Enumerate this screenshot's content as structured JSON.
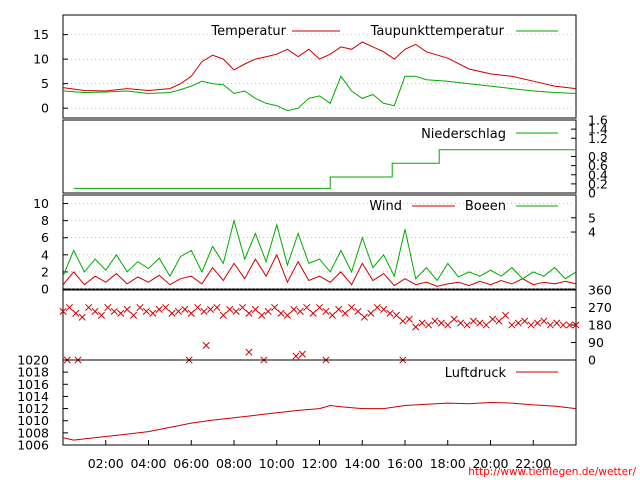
{
  "colors": {
    "temperature": "#cc0000",
    "dewpoint": "#00aa00",
    "precipitation": "#00aa00",
    "wind": "#cc0000",
    "gusts": "#00aa00",
    "direction": "#cc0000",
    "pressure": "#cc0000",
    "grid": "#999999",
    "credit": "#ff0000"
  },
  "credit": "http://www.tiefflegen.de/wetter/",
  "chart_data": [
    {
      "id": "temperature",
      "type": "line",
      "xlabel": "",
      "ylabel": "",
      "x_unit": "hours",
      "xlim": [
        0,
        24
      ],
      "ylim": [
        -2,
        19
      ],
      "y_ticks": [
        0,
        5,
        10,
        15
      ],
      "grid": "horizontal",
      "legend_position": "top",
      "series": [
        {
          "name": "Temperatur",
          "color": "#cc0000",
          "x": [
            0,
            1,
            2,
            3,
            4,
            5,
            5.5,
            6,
            6.5,
            7,
            7.5,
            8,
            8.5,
            9,
            9.5,
            10,
            10.5,
            11,
            11.5,
            12,
            12.5,
            13,
            13.5,
            14,
            14.5,
            15,
            15.5,
            16,
            16.5,
            17,
            18,
            19,
            20,
            21,
            22,
            23,
            24
          ],
          "y": [
            4.2,
            3.6,
            3.5,
            4.0,
            3.6,
            4.0,
            5.0,
            6.5,
            9.5,
            10.8,
            10.0,
            7.8,
            9.0,
            10.0,
            10.5,
            11.0,
            12.0,
            10.5,
            12.0,
            10.0,
            11.0,
            12.5,
            12.0,
            13.5,
            12.5,
            11.5,
            10.0,
            12.0,
            13.0,
            11.5,
            10.2,
            8.0,
            7.0,
            6.5,
            5.5,
            4.5,
            4.0
          ]
        },
        {
          "name": "Taupunkttemperatur",
          "color": "#00aa00",
          "x": [
            0,
            1,
            2,
            3,
            4,
            5,
            5.5,
            6,
            6.5,
            7,
            7.5,
            8,
            8.5,
            9,
            9.5,
            10,
            10.5,
            11,
            11.5,
            12,
            12.5,
            13,
            13.5,
            14,
            14.5,
            15,
            15.5,
            16,
            16.5,
            17,
            18,
            19,
            20,
            21,
            22,
            23,
            24
          ],
          "y": [
            3.5,
            3.2,
            3.3,
            3.5,
            3.0,
            3.2,
            3.8,
            4.5,
            5.5,
            5.0,
            4.8,
            3.0,
            3.5,
            2.0,
            1.0,
            0.5,
            -0.5,
            0.0,
            2.0,
            2.5,
            1.0,
            6.5,
            3.5,
            2.0,
            2.8,
            1.0,
            0.5,
            6.5,
            6.5,
            5.8,
            5.5,
            5.0,
            4.5,
            4.0,
            3.5,
            3.2,
            3.0
          ]
        }
      ]
    },
    {
      "id": "precipitation",
      "type": "line",
      "xlim": [
        0,
        24
      ],
      "ylim": [
        0,
        1.6
      ],
      "y_ticks_right": [
        0,
        0.2,
        0.4,
        0.6,
        0.8,
        1.2,
        1.4,
        1.6
      ],
      "legend_position": "top-right",
      "series": [
        {
          "name": "Niederschlag",
          "color": "#00aa00",
          "x": [
            0.5,
            12.5,
            12.5,
            15.4,
            15.4,
            17.6,
            17.6,
            24
          ],
          "y": [
            0.1,
            0.1,
            0.35,
            0.35,
            0.65,
            0.65,
            0.95,
            0.95
          ]
        }
      ]
    },
    {
      "id": "wind",
      "type": "line",
      "xlim": [
        0,
        24
      ],
      "ylim": [
        0,
        11
      ],
      "y_ticks": [
        0,
        2,
        4,
        6,
        8,
        10
      ],
      "y_ticks_right": [
        4,
        5
      ],
      "grid": "horizontal",
      "legend_position": "top-right",
      "series": [
        {
          "name": "Wind",
          "color": "#cc0000",
          "x": [
            0,
            0.5,
            1,
            1.5,
            2,
            2.5,
            3,
            3.5,
            4,
            4.5,
            5,
            5.5,
            6,
            6.5,
            7,
            7.5,
            8,
            8.5,
            9,
            9.5,
            10,
            10.5,
            11,
            11.5,
            12,
            12.5,
            13,
            13.5,
            14,
            14.5,
            15,
            15.5,
            16,
            16.5,
            17,
            17.5,
            18,
            18.5,
            19,
            19.5,
            20,
            20.5,
            21,
            21.5,
            22,
            22.5,
            23,
            23.5,
            24
          ],
          "y": [
            0.5,
            2.0,
            0.5,
            1.5,
            0.8,
            1.8,
            0.6,
            1.4,
            0.8,
            1.6,
            0.5,
            1.2,
            1.5,
            0.6,
            2.5,
            1.0,
            3.0,
            1.2,
            3.5,
            1.5,
            4.0,
            0.8,
            3.2,
            1.0,
            1.5,
            0.8,
            2.0,
            0.5,
            3.0,
            1.0,
            1.8,
            0.4,
            1.2,
            0.5,
            0.8,
            0.3,
            0.6,
            0.8,
            0.4,
            0.9,
            0.5,
            1.0,
            0.6,
            1.2,
            0.5,
            0.8,
            0.6,
            0.9,
            0.6
          ]
        },
        {
          "name": "Boeen",
          "color": "#00aa00",
          "x": [
            0,
            0.5,
            1,
            1.5,
            2,
            2.5,
            3,
            3.5,
            4,
            4.5,
            5,
            5.5,
            6,
            6.5,
            7,
            7.5,
            8,
            8.5,
            9,
            9.5,
            10,
            10.5,
            11,
            11.5,
            12,
            12.5,
            13,
            13.5,
            14,
            14.5,
            15,
            15.5,
            16,
            16.5,
            17,
            17.5,
            18,
            18.5,
            19,
            19.5,
            20,
            20.5,
            21,
            21.5,
            22,
            22.5,
            23,
            23.5,
            24
          ],
          "y": [
            1.5,
            4.5,
            2.0,
            3.5,
            2.2,
            4.0,
            2.0,
            3.2,
            2.4,
            3.6,
            1.5,
            3.8,
            4.5,
            2.0,
            5.0,
            3.0,
            8.0,
            3.5,
            6.5,
            3.2,
            7.5,
            2.8,
            6.5,
            3.0,
            3.5,
            2.0,
            4.5,
            2.0,
            6.0,
            2.5,
            4.0,
            1.5,
            7.0,
            1.2,
            2.5,
            1.0,
            3.0,
            1.4,
            2.0,
            1.5,
            2.2,
            1.5,
            2.5,
            1.2,
            2.0,
            1.5,
            2.5,
            1.2,
            2.0
          ]
        }
      ]
    },
    {
      "id": "wind-direction",
      "type": "scatter",
      "marker": "x",
      "xlim": [
        0,
        24
      ],
      "ylim": [
        0,
        360
      ],
      "y_ticks_right": [
        0,
        90,
        180,
        270,
        360
      ],
      "series": [
        {
          "name": "",
          "color": "#cc0000",
          "x": [
            0,
            0.3,
            0.6,
            0.9,
            1.2,
            1.5,
            1.8,
            2.1,
            2.4,
            2.7,
            3.0,
            3.3,
            3.6,
            3.9,
            4.2,
            4.5,
            4.8,
            5.1,
            5.4,
            5.7,
            6.0,
            6.3,
            6.6,
            6.9,
            7.2,
            7.5,
            7.8,
            8.1,
            8.4,
            8.7,
            9.0,
            9.3,
            9.6,
            9.9,
            10.2,
            10.5,
            10.8,
            11.1,
            11.4,
            11.7,
            12.0,
            12.3,
            12.6,
            12.9,
            13.2,
            13.5,
            13.8,
            14.1,
            14.4,
            14.7,
            15.0,
            15.3,
            15.6,
            15.9,
            16.2,
            16.5,
            16.8,
            17.1,
            17.4,
            17.7,
            18.0,
            18.3,
            18.6,
            18.9,
            19.2,
            19.5,
            19.8,
            20.1,
            20.4,
            20.7,
            21.0,
            21.3,
            21.6,
            21.9,
            22.2,
            22.5,
            22.8,
            23.1,
            23.4,
            23.7,
            24.0,
            6.7,
            8.7,
            10.9,
            11.2,
            0.2,
            0.7,
            5.9,
            9.4,
            12.3,
            15.9
          ],
          "y": [
            250,
            270,
            240,
            220,
            270,
            250,
            230,
            270,
            250,
            240,
            260,
            230,
            270,
            250,
            240,
            260,
            270,
            240,
            250,
            260,
            240,
            270,
            250,
            260,
            270,
            230,
            260,
            250,
            270,
            240,
            260,
            230,
            250,
            270,
            240,
            230,
            260,
            250,
            270,
            240,
            270,
            250,
            230,
            260,
            240,
            270,
            250,
            220,
            240,
            270,
            260,
            240,
            230,
            200,
            210,
            170,
            190,
            180,
            200,
            190,
            180,
            210,
            190,
            180,
            200,
            190,
            180,
            210,
            200,
            230,
            180,
            190,
            200,
            180,
            190,
            200,
            180,
            190,
            180,
            180,
            180,
            75,
            40,
            20,
            30,
            0,
            0,
            0,
            0,
            0,
            0
          ]
        }
      ]
    },
    {
      "id": "pressure",
      "type": "line",
      "xlim": [
        0,
        24
      ],
      "ylim": [
        1006,
        1020
      ],
      "y_ticks": [
        1006,
        1008,
        1010,
        1012,
        1014,
        1016,
        1018,
        1020
      ],
      "x_ticks": [
        "02:00",
        "04:00",
        "06:00",
        "08:00",
        "10:00",
        "12:00",
        "14:00",
        "16:00",
        "18:00",
        "20:00",
        "22:00"
      ],
      "legend_position": "top-right",
      "series": [
        {
          "name": "Luftdruck",
          "color": "#cc0000",
          "x": [
            0,
            0.5,
            1,
            2,
            3,
            4,
            5,
            6,
            7,
            8,
            9,
            10,
            11,
            12,
            12.5,
            13,
            14,
            15,
            16,
            17,
            18,
            19,
            20,
            21,
            22,
            23,
            24
          ],
          "y": [
            1007.2,
            1006.8,
            1007.0,
            1007.4,
            1007.8,
            1008.2,
            1008.9,
            1009.6,
            1010.1,
            1010.5,
            1010.9,
            1011.3,
            1011.7,
            1012.0,
            1012.5,
            1012.3,
            1012.0,
            1012.0,
            1012.5,
            1012.7,
            1012.9,
            1012.8,
            1013.0,
            1012.9,
            1012.6,
            1012.4,
            1012.0
          ]
        }
      ]
    }
  ]
}
